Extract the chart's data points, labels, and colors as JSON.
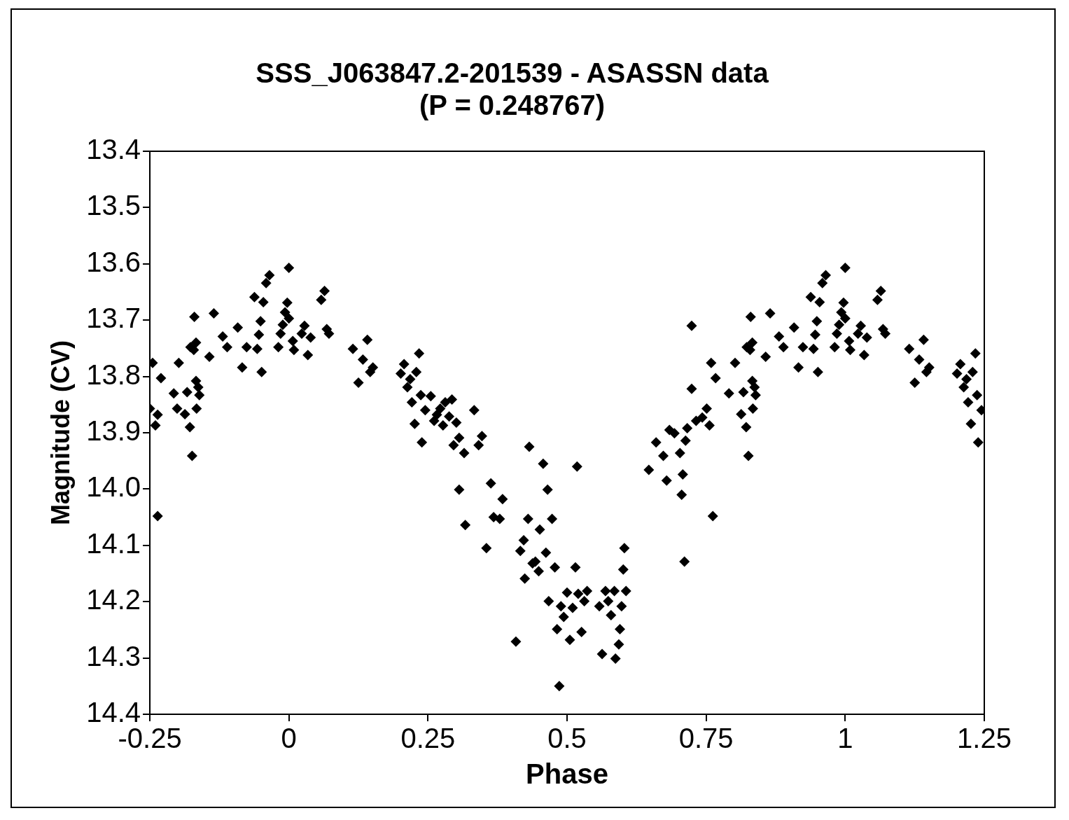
{
  "chart_data": {
    "type": "scatter",
    "title": "SSS_J063847.2-201539 - ASASSN data",
    "subtitle": "(P = 0.248767)",
    "xlabel": "Phase",
    "ylabel": "Magnitude (CV)",
    "xlim": [
      -0.25,
      1.25
    ],
    "xticks": [
      -0.25,
      0,
      0.25,
      0.5,
      0.75,
      1,
      1.25
    ],
    "ylim": [
      14.4,
      13.4
    ],
    "yticks": [
      13.4,
      13.5,
      13.6,
      13.7,
      13.8,
      13.9,
      {
        "value": 14,
        "label": "14.0"
      },
      14.1,
      14.2,
      14.3,
      14.4
    ],
    "grid": false,
    "legend": false,
    "marker": "diamond",
    "series": [
      {
        "color": "#000000",
        "x": [
          -0.25,
          -0.245,
          -0.24,
          -0.236,
          -0.236,
          -0.23,
          -0.207,
          -0.198,
          -0.201,
          -0.187,
          -0.183,
          -0.178,
          -0.177,
          -0.171,
          -0.174,
          -0.17,
          -0.167,
          -0.167,
          -0.163,
          -0.166,
          -0.161,
          -0.143,
          -0.135,
          -0.119,
          -0.111,
          -0.092,
          -0.084,
          -0.076,
          -0.062,
          -0.057,
          -0.054,
          -0.051,
          -0.049,
          -0.046,
          -0.041,
          -0.035,
          -0.019,
          -0.015,
          -0.011,
          -0.007,
          -0.003,
          0.0,
          0.0,
          0.007,
          0.009,
          0.023,
          0.028,
          0.034,
          0.039,
          0.058,
          0.064,
          0.068,
          0.072,
          0.115,
          0.125,
          0.133,
          0.141,
          0.146,
          0.151,
          0.201,
          0.207,
          0.213,
          0.218,
          0.221,
          0.226,
          0.229,
          0.234,
          0.237,
          0.239,
          0.245,
          0.255,
          0.261,
          0.266,
          0.272,
          0.277,
          0.281,
          0.288,
          0.293,
          0.296,
          0.301,
          0.306,
          0.315,
          0.306,
          0.317,
          0.333,
          0.341,
          0.347,
          0.355,
          0.363,
          0.368,
          0.379,
          0.384,
          0.408,
          0.416,
          0.422,
          0.424,
          0.432,
          0.43,
          0.438,
          0.443,
          0.449,
          0.451,
          0.457,
          0.462,
          0.465,
          0.467,
          0.473,
          0.478,
          0.482,
          0.486,
          0.489,
          0.494,
          0.5,
          0.505,
          0.51,
          0.515,
          0.518,
          0.52,
          0.526,
          0.531,
          0.536,
          0.558,
          0.563,
          0.569,
          0.574,
          0.579,
          0.585,
          0.587,
          0.593,
          0.595,
          0.598,
          0.601,
          0.603,
          0.606,
          0.647,
          0.66,
          0.673,
          0.679,
          0.684,
          0.693,
          0.703,
          0.706,
          0.708,
          0.711,
          0.713,
          0.716,
          0.724,
          0.724,
          0.732,
          0.743,
          0.751,
          0.756,
          0.759,
          0.762,
          0.767,
          0.791,
          0.802,
          0.813,
          0.817,
          0.822,
          0.823,
          0.829,
          0.826,
          0.83,
          0.833,
          0.833,
          0.837,
          0.834,
          0.839,
          0.857,
          0.865,
          0.881,
          0.889,
          0.908,
          0.916,
          0.924,
          0.938,
          0.943,
          0.946,
          0.949,
          0.951,
          0.954,
          0.959,
          0.965,
          0.981,
          0.985,
          0.989,
          0.993,
          0.997,
          1.0,
          1.0,
          1.007,
          1.009,
          1.023,
          1.028,
          1.034,
          1.039,
          1.058,
          1.064,
          1.068,
          1.072,
          1.115,
          1.125,
          1.133,
          1.141,
          1.146,
          1.151,
          1.201,
          1.207,
          1.213,
          1.218,
          1.221,
          1.226,
          1.229,
          1.234,
          1.237,
          1.239,
          1.245
        ],
        "values": [
          13.857,
          13.776,
          13.887,
          13.868,
          14.048,
          13.803,
          13.83,
          13.776,
          13.857,
          13.867,
          13.828,
          13.89,
          13.748,
          13.753,
          13.941,
          13.694,
          13.74,
          13.808,
          13.819,
          13.857,
          13.833,
          13.765,
          13.688,
          13.729,
          13.748,
          13.713,
          13.784,
          13.748,
          13.659,
          13.751,
          13.726,
          13.702,
          13.792,
          13.668,
          13.634,
          13.62,
          13.748,
          13.724,
          13.708,
          13.686,
          13.669,
          13.697,
          13.607,
          13.737,
          13.753,
          13.724,
          13.71,
          13.762,
          13.731,
          13.664,
          13.648,
          13.716,
          13.724,
          13.751,
          13.811,
          13.77,
          13.735,
          13.792,
          13.784,
          13.795,
          13.778,
          13.819,
          13.805,
          13.846,
          13.884,
          13.792,
          13.759,
          13.833,
          13.917,
          13.86,
          13.835,
          13.879,
          13.868,
          13.857,
          13.887,
          13.846,
          13.871,
          13.841,
          13.922,
          13.882,
          13.909,
          13.936,
          14.001,
          14.064,
          13.86,
          13.922,
          13.906,
          14.105,
          13.99,
          14.05,
          14.053,
          14.018,
          14.271,
          14.11,
          14.091,
          14.159,
          13.925,
          14.053,
          14.132,
          14.129,
          14.146,
          14.072,
          13.955,
          14.113,
          14.001,
          14.199,
          14.053,
          14.139,
          14.249,
          14.35,
          14.208,
          14.227,
          14.184,
          14.268,
          14.211,
          14.139,
          13.96,
          14.186,
          14.254,
          14.199,
          14.181,
          14.208,
          14.293,
          14.181,
          14.199,
          14.224,
          14.181,
          14.301,
          14.276,
          14.249,
          14.208,
          14.143,
          14.105,
          14.181,
          13.966,
          13.917,
          13.941,
          13.985,
          13.895,
          13.901,
          13.936,
          14.01,
          13.974,
          14.129,
          13.914,
          13.892,
          13.71,
          13.822,
          13.879,
          13.873,
          13.857,
          13.887,
          13.776,
          14.048,
          13.803,
          13.83,
          13.776,
          13.867,
          13.828,
          13.89,
          13.748,
          13.753,
          13.941,
          13.694,
          13.74,
          13.808,
          13.819,
          13.857,
          13.833,
          13.765,
          13.688,
          13.729,
          13.748,
          13.713,
          13.784,
          13.748,
          13.659,
          13.751,
          13.726,
          13.702,
          13.792,
          13.668,
          13.634,
          13.62,
          13.748,
          13.724,
          13.708,
          13.686,
          13.669,
          13.697,
          13.607,
          13.737,
          13.753,
          13.724,
          13.71,
          13.762,
          13.731,
          13.664,
          13.648,
          13.716,
          13.724,
          13.751,
          13.811,
          13.77,
          13.735,
          13.792,
          13.784,
          13.795,
          13.778,
          13.819,
          13.805,
          13.846,
          13.884,
          13.792,
          13.759,
          13.833,
          13.917,
          13.86
        ]
      }
    ]
  }
}
